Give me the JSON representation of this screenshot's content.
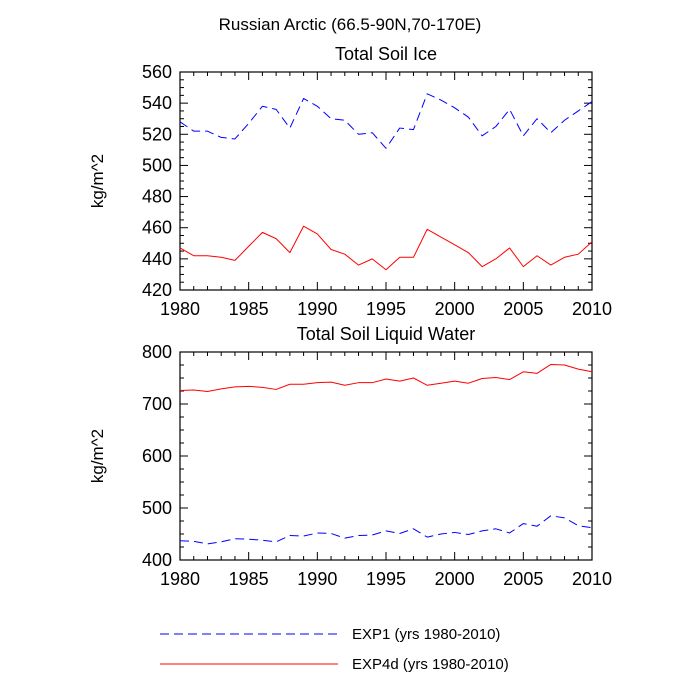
{
  "suptitle": "Russian Arctic (66.5-90N,70-170E)",
  "colors": {
    "exp1": "#0000ff",
    "exp4d": "#ff0000",
    "axis": "#000000"
  },
  "legend": [
    {
      "label": "EXP1 (yrs 1980-2010)",
      "color": "#0000ff",
      "dash": "dashed"
    },
    {
      "label": "EXP4d (yrs 1980-2010)",
      "color": "#ff0000",
      "dash": "solid"
    }
  ],
  "chart_data": [
    {
      "type": "line",
      "title": "Total Soil Ice",
      "xlabel": "",
      "ylabel": "kg/m^2",
      "xlim": [
        1980,
        2010
      ],
      "ylim": [
        420,
        560
      ],
      "xticks": [
        1980,
        1985,
        1990,
        1995,
        2000,
        2005,
        2010
      ],
      "yticks": [
        420,
        440,
        460,
        480,
        500,
        520,
        540,
        560
      ],
      "x": [
        1980,
        1981,
        1982,
        1983,
        1984,
        1985,
        1986,
        1987,
        1988,
        1989,
        1990,
        1991,
        1992,
        1993,
        1994,
        1995,
        1996,
        1997,
        1998,
        1999,
        2000,
        2001,
        2002,
        2003,
        2004,
        2005,
        2006,
        2007,
        2008,
        2009,
        2010
      ],
      "series": [
        {
          "name": "EXP1 (yrs 1980-2010)",
          "color": "#0000ff",
          "dash": "dashed",
          "values": [
            528,
            522,
            522,
            518,
            517,
            527,
            538,
            536,
            524,
            543,
            538,
            530,
            529,
            520,
            521,
            511,
            524,
            523,
            546,
            542,
            537,
            531,
            519,
            525,
            536,
            519,
            530,
            521,
            529,
            535,
            541
          ]
        },
        {
          "name": "EXP4d (yrs 1980-2010)",
          "color": "#ff0000",
          "dash": "solid",
          "values": [
            447,
            442,
            442,
            441,
            439,
            448,
            457,
            453,
            444,
            461,
            456,
            446,
            443,
            436,
            440,
            433,
            441,
            441,
            459,
            454,
            449,
            444,
            435,
            440,
            447,
            435,
            442,
            436,
            441,
            443,
            451
          ]
        }
      ]
    },
    {
      "type": "line",
      "title": "Total Soil Liquid Water",
      "xlabel": "",
      "ylabel": "kg/m^2",
      "xlim": [
        1980,
        2010
      ],
      "ylim": [
        400,
        800
      ],
      "xticks": [
        1980,
        1985,
        1990,
        1995,
        2000,
        2005,
        2010
      ],
      "yticks": [
        400,
        500,
        600,
        700,
        800
      ],
      "x": [
        1980,
        1981,
        1982,
        1983,
        1984,
        1985,
        1986,
        1987,
        1988,
        1989,
        1990,
        1991,
        1992,
        1993,
        1994,
        1995,
        1996,
        1997,
        1998,
        1999,
        2000,
        2001,
        2002,
        2003,
        2004,
        2005,
        2006,
        2007,
        2008,
        2009,
        2010
      ],
      "series": [
        {
          "name": "EXP1 (yrs 1980-2010)",
          "color": "#0000ff",
          "dash": "dashed",
          "values": [
            437,
            436,
            431,
            435,
            441,
            440,
            438,
            435,
            447,
            446,
            452,
            451,
            442,
            447,
            448,
            456,
            451,
            460,
            444,
            450,
            453,
            449,
            456,
            460,
            452,
            470,
            465,
            485,
            481,
            466,
            462
          ]
        },
        {
          "name": "EXP4d (yrs 1980-2010)",
          "color": "#ff0000",
          "dash": "solid",
          "values": [
            726,
            727,
            724,
            729,
            733,
            734,
            732,
            728,
            738,
            738,
            741,
            742,
            736,
            741,
            741,
            748,
            744,
            750,
            736,
            740,
            744,
            740,
            749,
            751,
            747,
            762,
            759,
            776,
            775,
            767,
            762
          ]
        }
      ]
    }
  ]
}
